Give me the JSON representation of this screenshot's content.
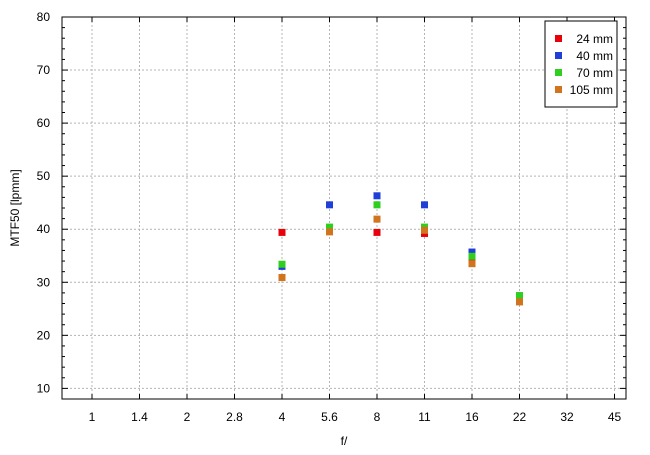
{
  "chart_data": {
    "type": "scatter",
    "xlabel": "f/",
    "ylabel": "MTF50 [lpmm]",
    "ylim": [
      8,
      80
    ],
    "yticks": [
      10,
      20,
      30,
      40,
      50,
      60,
      70,
      80
    ],
    "x_scale": "log2",
    "categories": [
      "1",
      "1.4",
      "2",
      "2.8",
      "4",
      "5.6",
      "8",
      "11",
      "16",
      "22",
      "32",
      "45"
    ],
    "grid": true,
    "legend_position": "top-right",
    "series": [
      {
        "name": "24 mm",
        "color": "#e8000b",
        "x": [
          "4",
          "5.6",
          "8",
          "11",
          "16",
          "22"
        ],
        "values": [
          39.4,
          39.6,
          39.4,
          39.2,
          34.5,
          27.0
        ]
      },
      {
        "name": "40 mm",
        "color": "#1f3fd8",
        "x": [
          "4",
          "5.6",
          "8",
          "11",
          "16",
          "22"
        ],
        "values": [
          33.0,
          44.6,
          46.3,
          44.6,
          35.7,
          27.0
        ]
      },
      {
        "name": "70 mm",
        "color": "#2fcf1f",
        "x": [
          "4",
          "5.6",
          "8",
          "11",
          "16",
          "22"
        ],
        "values": [
          33.4,
          40.4,
          44.6,
          40.4,
          34.9,
          27.5
        ]
      },
      {
        "name": "105 mm",
        "color": "#d2731d",
        "x": [
          "4",
          "5.6",
          "8",
          "11",
          "16",
          "22"
        ],
        "values": [
          30.9,
          39.5,
          41.9,
          39.8,
          33.5,
          26.3
        ]
      }
    ]
  }
}
